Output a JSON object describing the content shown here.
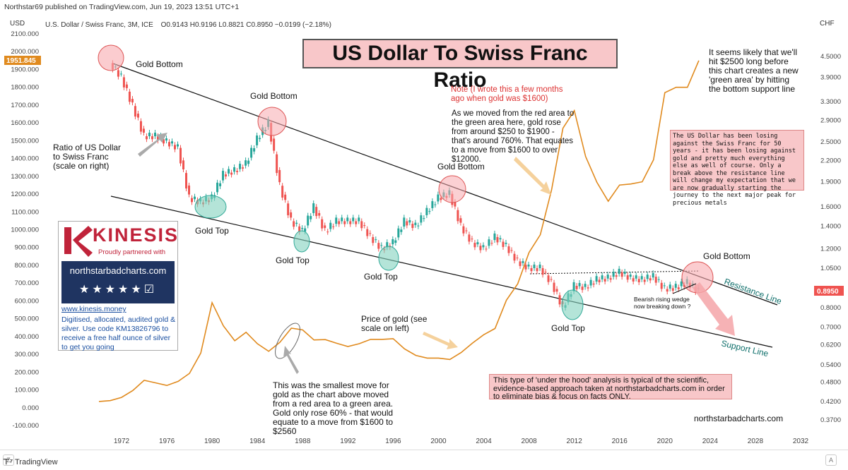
{
  "header": {
    "published": "Northstar69 published on TradingView.com, Jun 19, 2023 13:51 UTC+1",
    "symbol": "U.S. Dollar / Swiss Franc, 3M, ICE",
    "ohlc": "O0.9143 H0.9196 L0.8821 C0.8950 −0.0199 (−2.18%)",
    "left_unit": "USD",
    "right_unit": "CHF"
  },
  "chart_data": {
    "type": "line",
    "title": "US Dollar To Swiss Franc Ratio",
    "left_axis": {
      "unit": "USD",
      "ticks": [
        "2100.000",
        "2000.000",
        "1900.000",
        "1800.000",
        "1700.000",
        "1600.000",
        "1500.000",
        "1400.000",
        "1300.000",
        "1200.000",
        "1100.000",
        "1000.000",
        "900.000",
        "800.000",
        "700.000",
        "600.000",
        "500.000",
        "400.000",
        "300.000",
        "200.000",
        "100.000",
        "0.000",
        "-100.000"
      ],
      "ylim": [
        -100,
        2100
      ]
    },
    "right_axis": {
      "unit": "CHF",
      "scale": "log",
      "ticks": [
        "4.5000",
        "3.9000",
        "3.3000",
        "2.9000",
        "2.5000",
        "2.2000",
        "1.9000",
        "1.6000",
        "1.4000",
        "1.2000",
        "1.0500",
        "0.9000",
        "0.8000",
        "0.7000",
        "0.6200",
        "0.5400",
        "0.4800",
        "0.4200",
        "0.3700"
      ]
    },
    "x_axis": {
      "ticks": [
        "1972",
        "1976",
        "1980",
        "1984",
        "1988",
        "1992",
        "1996",
        "2000",
        "2004",
        "2008",
        "2012",
        "2016",
        "2020",
        "2024",
        "2028",
        "2032"
      ],
      "xlim": [
        1969,
        2033
      ]
    },
    "series": [
      {
        "name": "Ratio of US Dollar to Swiss Franc",
        "color": "#26a69a",
        "down_color": "#ef5350",
        "style": "candles",
        "axis": "right",
        "x": [
          1971,
          1972,
          1973,
          1974,
          1975,
          1976,
          1977,
          1978,
          1979,
          1980,
          1981,
          1982,
          1983,
          1984,
          1985,
          1986,
          1987,
          1988,
          1989,
          1990,
          1991,
          1992,
          1993,
          1994,
          1995,
          1996,
          1997,
          1998,
          1999,
          2000,
          2001,
          2002,
          2003,
          2004,
          2005,
          2006,
          2007,
          2008,
          2009,
          2010,
          2011,
          2012,
          2013,
          2014,
          2015,
          2016,
          2017,
          2018,
          2019,
          2020,
          2021,
          2022,
          2023
        ],
        "y": [
          4.3,
          3.9,
          3.2,
          2.6,
          2.6,
          2.5,
          2.4,
          1.7,
          1.65,
          1.7,
          2.0,
          2.05,
          2.15,
          2.55,
          2.85,
          1.85,
          1.45,
          1.35,
          1.6,
          1.35,
          1.45,
          1.45,
          1.45,
          1.3,
          1.2,
          1.25,
          1.45,
          1.4,
          1.55,
          1.7,
          1.75,
          1.4,
          1.25,
          1.2,
          1.3,
          1.22,
          1.1,
          1.05,
          1.05,
          0.95,
          0.8,
          0.93,
          0.92,
          0.97,
          0.98,
          1.02,
          0.98,
          0.97,
          0.99,
          0.91,
          0.92,
          0.95,
          0.895
        ]
      },
      {
        "name": "Price of gold",
        "color": "#e08a1e",
        "style": "line",
        "axis": "left",
        "x": [
          1970,
          1971,
          1972,
          1973,
          1974,
          1975,
          1976,
          1977,
          1978,
          1979,
          1980,
          1981,
          1982,
          1983,
          1984,
          1985,
          1986,
          1987,
          1988,
          1989,
          1990,
          1991,
          1992,
          1993,
          1994,
          1995,
          1996,
          1997,
          1998,
          1999,
          2000,
          2001,
          2002,
          2003,
          2004,
          2005,
          2006,
          2007,
          2008,
          2009,
          2010,
          2011,
          2012,
          2013,
          2014,
          2015,
          2016,
          2017,
          2018,
          2019,
          2020,
          2021,
          2022,
          2023
        ],
        "y": [
          35,
          40,
          58,
          97,
          154,
          140,
          125,
          148,
          193,
          307,
          590,
          460,
          376,
          424,
          360,
          317,
          368,
          447,
          437,
          381,
          383,
          362,
          344,
          360,
          384,
          384,
          388,
          331,
          294,
          279,
          279,
          271,
          310,
          363,
          410,
          445,
          604,
          696,
          872,
          972,
          1225,
          1570,
          1669,
          1411,
          1266,
          1160,
          1251,
          1257,
          1269,
          1393,
          1770,
          1800,
          1800,
          1950
        ]
      }
    ],
    "current_values": {
      "left": "1951.845",
      "right": "0.8950"
    }
  },
  "annotations": {
    "gold_bottom": "Gold Bottom",
    "gold_top": "Gold Top",
    "ratio_label": "Ratio of US Dollar to Swiss Franc (scale on right)",
    "note_red": "Note (I wrote this a few months ago when gold was $1600)",
    "note_body": "As we moved from the red area to the green area here, gold rose from around $250 to $1900 - that's around 760%. That equates to a move from $1600 to over $12000.",
    "top_right": "It seems likely that we'll hit $2500 long before this chart creates a new 'green area' by hitting the bottom support line",
    "pink_box": "The US Dollar has been losing against the Swiss Franc for 50 years - it has been losing against gold and pretty much everything else as well of course. Only a break above the resistance line will change my expectation that we are now gradually starting the journey to the next major peak for precious metals",
    "price_of_gold": "Price of gold (see scale on left)",
    "smallest_move": "This was the smallest move for gold as the chart above moved from a red area to a green area. Gold only rose 60% - that would equate to a move from $1600 to $2560",
    "bearish": "Bearish rising wedge now breaking down ?",
    "resistance": "Resistance Line",
    "support": "Support Line",
    "bottom_box": "This type of 'under the hood' analysis is typical of the scientific, evidence-based approach taken at northstarbadcharts.com in order to eliminate bias & focus on facts ONLY.",
    "watermark": "northstarbadcharts.com"
  },
  "ad": {
    "brand": "KINESIS",
    "tagline": "Proudly partnered with",
    "partner": "northstarbadcharts.com",
    "link": "www.kinesis.money",
    "description": "Digitised, allocated, audited gold & silver. Use code KM13826796 to receive a free half ounce of silver to get you going"
  },
  "footer": {
    "brand": "TradingView",
    "left_btn": "Z",
    "right_btn": "A"
  },
  "colors": {
    "up": "#26a69a",
    "down": "#ef5350",
    "gold": "#e08a1e",
    "price_label": "#ef5350",
    "title_bg": "#f8c7c9"
  }
}
